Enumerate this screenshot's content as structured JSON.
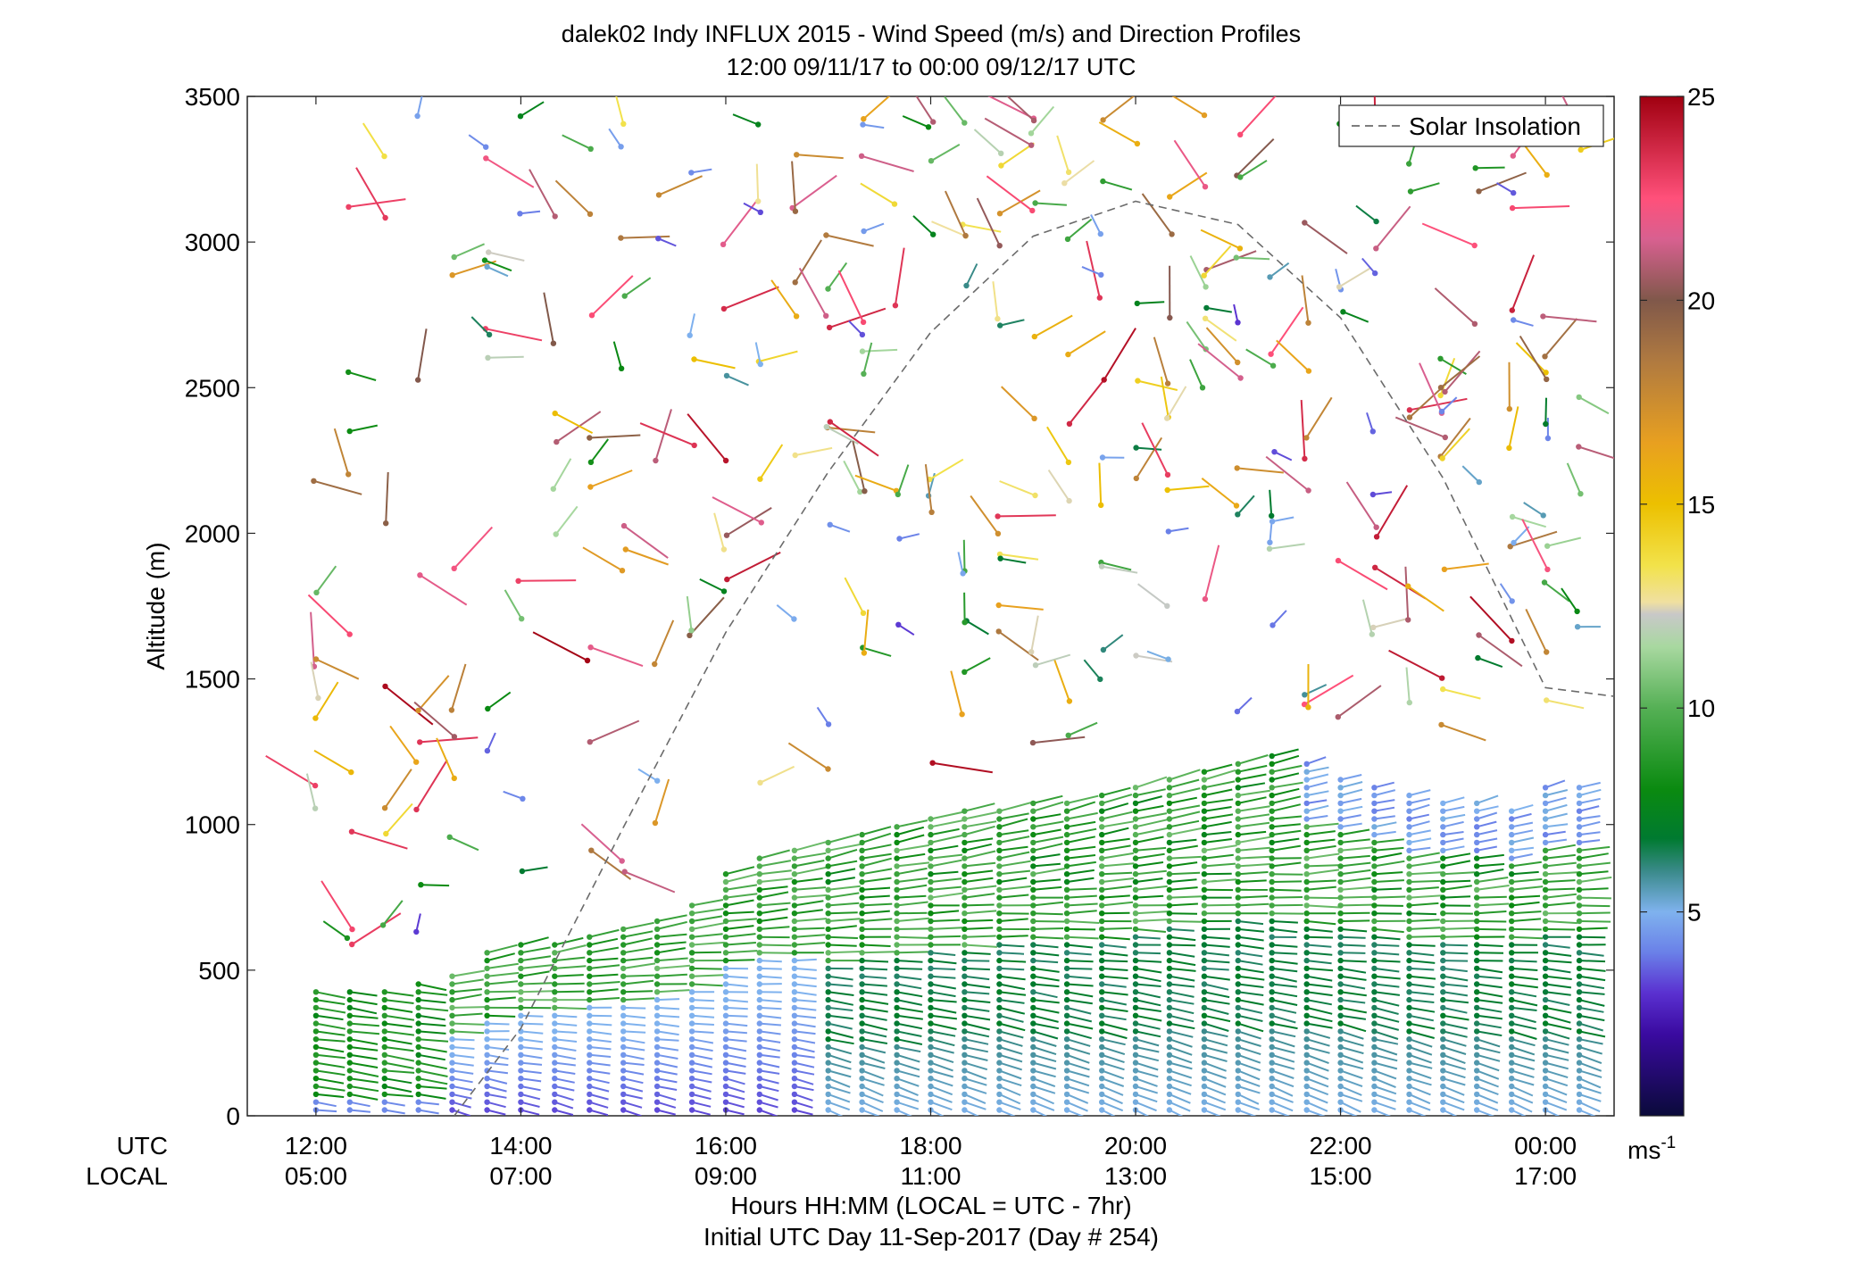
{
  "chart_data": {
    "type": "scatter",
    "title": "dalek02 Indy INFLUX 2015 - Wind Speed (m/s) and Direction Profiles",
    "subtitle": "12:00 09/11/17 to 00:00 09/12/17  UTC",
    "ylabel": "Altitude (m)",
    "xlabel": "Hours HH:MM  (LOCAL = UTC - 7hr)",
    "xlabel2": "Initial UTC Day 11-Sep-2017 (Day # 254)",
    "ylim": [
      0,
      3500
    ],
    "xlim_hours_utc": [
      11.33,
      24.67
    ],
    "yticks": [
      0,
      500,
      1000,
      1500,
      2000,
      2500,
      3000,
      3500
    ],
    "xtick_hours_utc": [
      12,
      14,
      16,
      18,
      20,
      22,
      24
    ],
    "xtick_rows": [
      {
        "name": "UTC",
        "labels": [
          "12:00",
          "14:00",
          "16:00",
          "18:00",
          "20:00",
          "22:00",
          "00:00"
        ]
      },
      {
        "name": "LOCAL",
        "labels": [
          "05:00",
          "07:00",
          "09:00",
          "11:00",
          "13:00",
          "15:00",
          "17:00"
        ]
      }
    ],
    "legend": {
      "label": "Solar Insolation",
      "position": "top-right",
      "style": "dashed",
      "color": "#707070"
    },
    "grid": false,
    "colorbar": {
      "range": [
        0,
        25
      ],
      "ticks": [
        5,
        10,
        15,
        20,
        25
      ],
      "unit": "ms",
      "unit_exp": "-1",
      "stops": [
        {
          "v": 0,
          "c": "#0a0a3a"
        },
        {
          "v": 2,
          "c": "#3a0aa0"
        },
        {
          "v": 3,
          "c": "#5a30d0"
        },
        {
          "v": 4,
          "c": "#6a80e8"
        },
        {
          "v": 5,
          "c": "#7fb2ee"
        },
        {
          "v": 6,
          "c": "#3a8a8a"
        },
        {
          "v": 6.8,
          "c": "#007a30"
        },
        {
          "v": 8,
          "c": "#0a8a10"
        },
        {
          "v": 10,
          "c": "#55b055"
        },
        {
          "v": 11.5,
          "c": "#a8d8a0"
        },
        {
          "v": 12.3,
          "c": "#c8c8c8"
        },
        {
          "v": 12.6,
          "c": "#f0e0a0"
        },
        {
          "v": 13.5,
          "c": "#f2e24a"
        },
        {
          "v": 15,
          "c": "#ecc000"
        },
        {
          "v": 16.5,
          "c": "#e8a020"
        },
        {
          "v": 18.5,
          "c": "#b07a40"
        },
        {
          "v": 20,
          "c": "#80584a"
        },
        {
          "v": 21.5,
          "c": "#d86090"
        },
        {
          "v": 22.5,
          "c": "#ff507a"
        },
        {
          "v": 25,
          "c": "#a00010"
        }
      ]
    },
    "insolation_curve": {
      "x_hours_utc": [
        13.35,
        14,
        15,
        16,
        17,
        18,
        19,
        20,
        21,
        22,
        23,
        24,
        24.67
      ],
      "y": [
        0,
        300,
        990,
        1660,
        2210,
        2690,
        3020,
        3140,
        3060,
        2740,
        2190,
        1470,
        1440
      ]
    },
    "profiles": {
      "note": "Each profile: UTC hour, lowest/highest altitude of the boundary-layer barb stack, base direction (deg) and speed (m/s)",
      "times": [
        12,
        12.33,
        12.67,
        13,
        13.33,
        13.67,
        14,
        14.33,
        14.67,
        15,
        15.33,
        15.67,
        16,
        16.33,
        16.67,
        17,
        17.33,
        17.67,
        18,
        18.33,
        18.67,
        19,
        19.33,
        19.67,
        20,
        20.33,
        20.67,
        21,
        21.33,
        21.67,
        22,
        22.33,
        22.67,
        23,
        23.33,
        23.67,
        24,
        24.33
      ],
      "mixed_layer_top": [
        430,
        430,
        430,
        470,
        480,
        560,
        600,
        610,
        640,
        650,
        680,
        740,
        850,
        900,
        930,
        960,
        990,
        1010,
        1040,
        1060,
        1070,
        1080,
        1090,
        1110,
        1150,
        1180,
        1200,
        1230,
        1240,
        1210,
        1180,
        1150,
        1110,
        1090,
        1080,
        1070,
        1130,
        1130
      ]
    }
  }
}
